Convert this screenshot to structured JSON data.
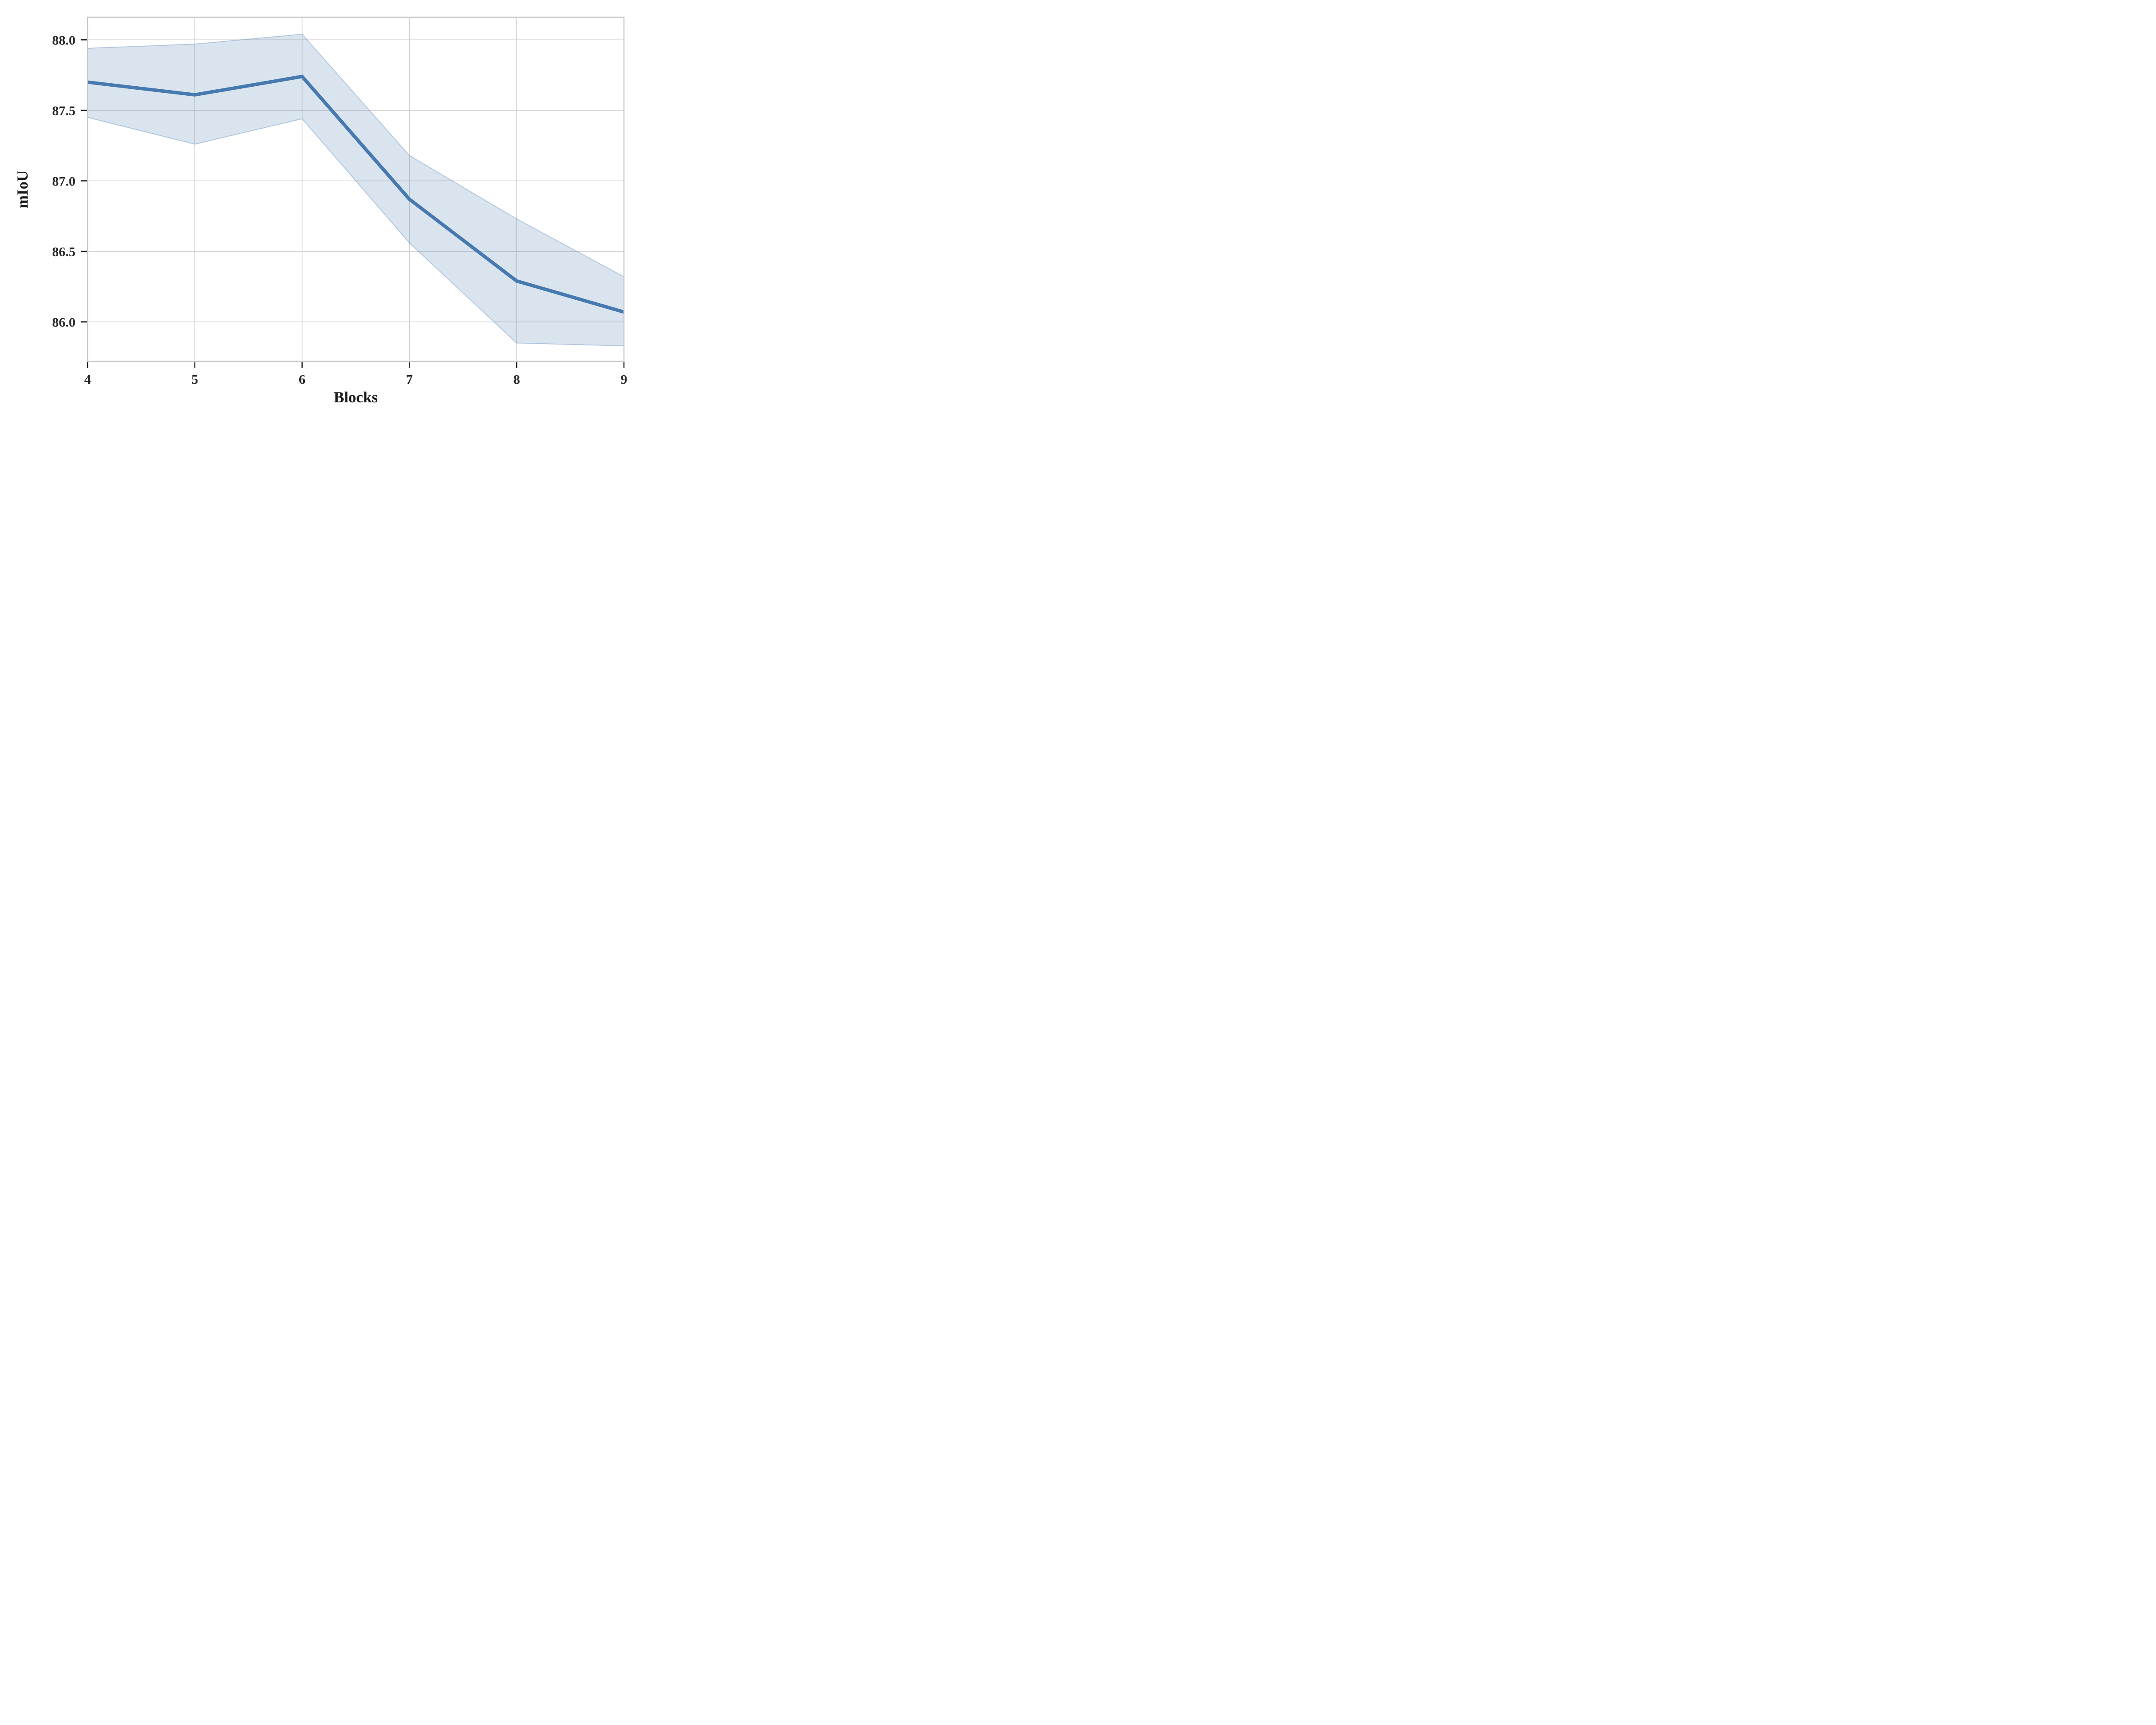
{
  "chart_data": {
    "type": "line",
    "title": "",
    "xlabel": "Blocks",
    "ylabel": "mIoU",
    "x": [
      4,
      5,
      6,
      7,
      8,
      9
    ],
    "series": [
      {
        "name": "mIoU",
        "values": [
          87.7,
          87.61,
          87.74,
          86.87,
          86.29,
          86.07
        ]
      }
    ],
    "band": {
      "upper": [
        87.94,
        87.97,
        88.04,
        87.18,
        86.73,
        86.32
      ],
      "lower": [
        87.45,
        87.26,
        87.44,
        86.56,
        85.85,
        85.83
      ]
    },
    "x_tick_labels": [
      "4",
      "5",
      "6",
      "7",
      "8",
      "9"
    ],
    "y_ticks": [
      86.0,
      86.5,
      87.0,
      87.5,
      88.0
    ],
    "y_tick_labels": [
      "86.0",
      "86.5",
      "87.0",
      "87.5",
      "88.0"
    ],
    "xlim": [
      4,
      9
    ],
    "ylim": [
      85.72,
      88.16
    ],
    "grid": true,
    "legend": "none",
    "colors": {
      "line": "#4679b0",
      "band_fill": "rgba(70,121,176,0.20)",
      "band_edge": "rgba(70,121,176,0.35)",
      "grid": "#cccccc",
      "spine": "#c8c8c8",
      "tick": "#262626",
      "text": "#262626"
    }
  }
}
